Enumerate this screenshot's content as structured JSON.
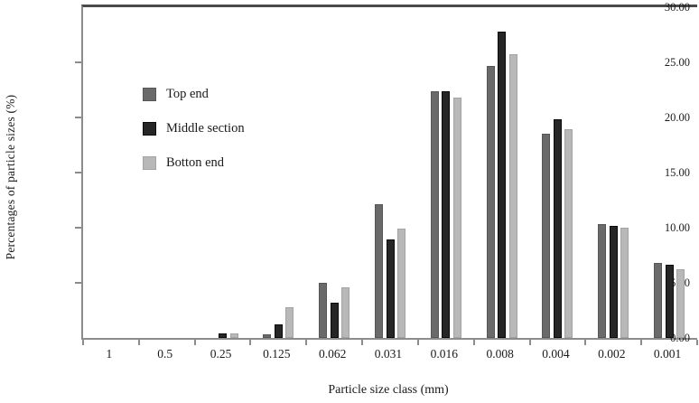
{
  "chart_data": {
    "type": "bar",
    "title": "",
    "xlabel": "Particle size class (mm)",
    "ylabel": "Percentages of particle sizes (%)",
    "categories": [
      "1",
      "0.5",
      "0.25",
      "0.125",
      "0.062",
      "0.031",
      "0.016",
      "0.008",
      "0.004",
      "0.002",
      "0.001"
    ],
    "series": [
      {
        "name": "Top end",
        "color": "#6a6a6a",
        "edge": "#565656",
        "values": [
          0,
          0,
          0,
          0.3,
          5.0,
          12.1,
          22.4,
          24.7,
          18.5,
          10.3,
          6.8
        ]
      },
      {
        "name": "Middle section",
        "color": "#262626",
        "edge": "#0a0a0a",
        "values": [
          0,
          0,
          0.4,
          1.2,
          3.2,
          8.9,
          22.4,
          27.8,
          19.8,
          10.2,
          6.6
        ]
      },
      {
        "name": "Botton end",
        "color": "#b8b8b8",
        "edge": "#a3a3a3",
        "values": [
          0,
          0,
          0.45,
          2.8,
          4.6,
          9.9,
          21.8,
          25.7,
          18.9,
          10.0,
          6.2
        ]
      }
    ],
    "ylim": [
      0,
      30
    ],
    "ytick_step": 5,
    "ytick_labels": [
      "0.00",
      "5.00",
      "10.00",
      "15.00",
      "20.00",
      "25.00",
      "30.00"
    ],
    "grid": false,
    "legend_position": "upper-left-inside",
    "axis_color": "#8c8c8c",
    "top_border_color": "#4a4a4a",
    "text_color": "#1a1a1a"
  }
}
